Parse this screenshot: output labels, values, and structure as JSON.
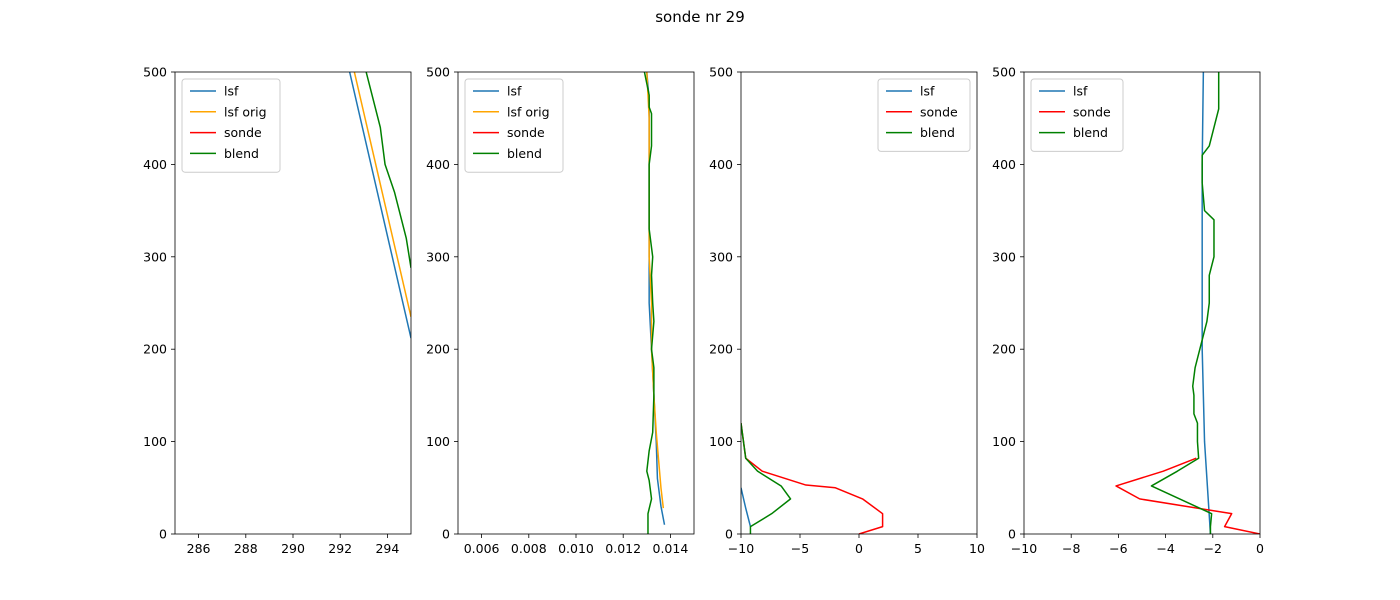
{
  "figure": {
    "title": "sonde nr 29"
  },
  "chart_data": [
    {
      "type": "line",
      "xlim": [
        285,
        295
      ],
      "ylim": [
        0,
        500
      ],
      "xticks": [
        "286",
        "288",
        "290",
        "292",
        "294"
      ],
      "xtick_values": [
        286,
        288,
        290,
        292,
        294
      ],
      "yticks": [
        "0",
        "100",
        "200",
        "300",
        "400",
        "500"
      ],
      "ytick_values": [
        0,
        100,
        200,
        300,
        400,
        500
      ],
      "legend": "upper-left",
      "grid": false,
      "series": [
        {
          "name": "lsf",
          "color": "#1f77b4",
          "x": [
            292.4,
            295.0
          ],
          "y": [
            500,
            212
          ]
        },
        {
          "name": "lsf orig",
          "color": "#ffa500",
          "x": [
            292.6,
            295.0
          ],
          "y": [
            500,
            235
          ]
        },
        {
          "name": "sonde",
          "color": "#ff0000",
          "x": [],
          "y": []
        },
        {
          "name": "blend",
          "color": "#008000",
          "x": [
            293.1,
            293.4,
            293.7,
            293.9,
            294.3,
            294.5,
            294.8,
            295.0
          ],
          "y": [
            500,
            470,
            440,
            400,
            370,
            350,
            320,
            288
          ]
        }
      ]
    },
    {
      "type": "line",
      "xlim": [
        0.005,
        0.015
      ],
      "ylim": [
        0,
        500
      ],
      "xticks": [
        "0.006",
        "0.008",
        "0.010",
        "0.012",
        "0.014"
      ],
      "xtick_values": [
        0.006,
        0.008,
        0.01,
        0.012,
        0.014
      ],
      "yticks": [
        "0",
        "100",
        "200",
        "300",
        "400",
        "500"
      ],
      "ytick_values": [
        0,
        100,
        200,
        300,
        400,
        500
      ],
      "legend": "upper-left",
      "grid": false,
      "series": [
        {
          "name": "lsf",
          "color": "#1f77b4",
          "x": [
            0.01375,
            0.0136,
            0.01345,
            0.0134,
            0.0133,
            0.0132,
            0.0131,
            0.0131,
            0.0131,
            0.0131,
            0.0131,
            0.0131,
            0.0131,
            0.013
          ],
          "y": [
            10,
            30,
            60,
            100,
            150,
            200,
            250,
            300,
            350,
            400,
            430,
            450,
            470,
            500
          ]
        },
        {
          "name": "lsf orig",
          "color": "#ffa500",
          "x": [
            0.0137,
            0.0136,
            0.0135,
            0.0134,
            0.0133,
            0.0132,
            0.0132,
            0.0131,
            0.0131,
            0.0131,
            0.0131,
            0.013
          ],
          "y": [
            28,
            50,
            80,
            110,
            150,
            200,
            250,
            300,
            350,
            400,
            450,
            500
          ]
        },
        {
          "name": "sonde",
          "color": "#ff0000",
          "x": [],
          "y": []
        },
        {
          "name": "blend",
          "color": "#008000",
          "x": [
            0.01305,
            0.01305,
            0.0132,
            0.0131,
            0.013,
            0.0131,
            0.01325,
            0.0133,
            0.0133,
            0.0132,
            0.0133,
            0.01325,
            0.0132,
            0.01325,
            0.0131,
            0.0131,
            0.0131,
            0.0131,
            0.0132,
            0.0132,
            0.0132,
            0.0131,
            0.0131,
            0.0129
          ],
          "y": [
            0,
            22,
            38,
            58,
            68,
            90,
            110,
            150,
            180,
            200,
            230,
            250,
            280,
            300,
            330,
            350,
            380,
            400,
            420,
            440,
            455,
            462,
            475,
            500
          ]
        }
      ]
    },
    {
      "type": "line",
      "xlim": [
        -10,
        10
      ],
      "ylim": [
        0,
        500
      ],
      "xticks": [
        "−10",
        "−5",
        "0",
        "5",
        "10"
      ],
      "xtick_values": [
        -10,
        -5,
        0,
        5,
        10
      ],
      "yticks": [
        "0",
        "100",
        "200",
        "300",
        "400",
        "500"
      ],
      "ytick_values": [
        0,
        100,
        200,
        300,
        400,
        500
      ],
      "legend": "upper-right",
      "grid": false,
      "series": [
        {
          "name": "lsf",
          "color": "#1f77b4",
          "x": [
            -9.2,
            -9.6,
            -10.0
          ],
          "y": [
            8,
            28,
            50
          ]
        },
        {
          "name": "sonde",
          "color": "#ff0000",
          "x": [
            0.0,
            2.0,
            2.0,
            0.3,
            -2.0,
            -4.5,
            -8.2,
            -9.6,
            -10.0
          ],
          "y": [
            0,
            8,
            22,
            38,
            50,
            53,
            68,
            82,
            120
          ]
        },
        {
          "name": "blend",
          "color": "#008000",
          "x": [
            -9.2,
            -9.2,
            -7.4,
            -5.8,
            -6.6,
            -8.6,
            -9.6,
            -10.0
          ],
          "y": [
            0,
            8,
            22,
            38,
            52,
            68,
            82,
            120
          ]
        }
      ]
    },
    {
      "type": "line",
      "xlim": [
        -10,
        0
      ],
      "ylim": [
        0,
        500
      ],
      "xticks": [
        "−10",
        "−8",
        "−6",
        "−4",
        "−2",
        "0"
      ],
      "xtick_values": [
        -10,
        -8,
        -6,
        -4,
        -2,
        0
      ],
      "yticks": [
        "0",
        "100",
        "200",
        "300",
        "400",
        "500"
      ],
      "ytick_values": [
        0,
        100,
        200,
        300,
        400,
        500
      ],
      "legend": "upper-left",
      "grid": false,
      "series": [
        {
          "name": "lsf",
          "color": "#1f77b4",
          "x": [
            -2.1,
            -2.15,
            -2.2,
            -2.25,
            -2.3,
            -2.35,
            -2.4,
            -2.45,
            -2.45,
            -2.45,
            -2.45,
            -2.4
          ],
          "y": [
            0,
            20,
            40,
            60,
            80,
            100,
            150,
            200,
            250,
            300,
            400,
            500
          ]
        },
        {
          "name": "sonde",
          "color": "#ff0000",
          "x": [
            0.0,
            -1.5,
            -1.2,
            -5.1,
            -6.1,
            -4.1,
            -2.7
          ],
          "y": [
            0,
            8,
            22,
            38,
            52,
            68,
            82
          ]
        },
        {
          "name": "blend",
          "color": "#008000",
          "x": [
            -2.1,
            -2.1,
            -2.05,
            -4.6,
            -3.5,
            -2.6,
            -2.65,
            -2.65,
            -2.8,
            -2.8,
            -2.85,
            -2.75,
            -2.55,
            -2.45,
            -2.25,
            -2.15,
            -2.15,
            -1.95,
            -1.95,
            -2.35,
            -2.45,
            -2.45,
            -2.15,
            -1.95,
            -1.75,
            -1.75
          ],
          "y": [
            0,
            8,
            22,
            52,
            68,
            82,
            100,
            120,
            130,
            150,
            160,
            180,
            200,
            210,
            230,
            250,
            280,
            300,
            340,
            350,
            380,
            410,
            420,
            440,
            460,
            500
          ]
        }
      ]
    }
  ]
}
